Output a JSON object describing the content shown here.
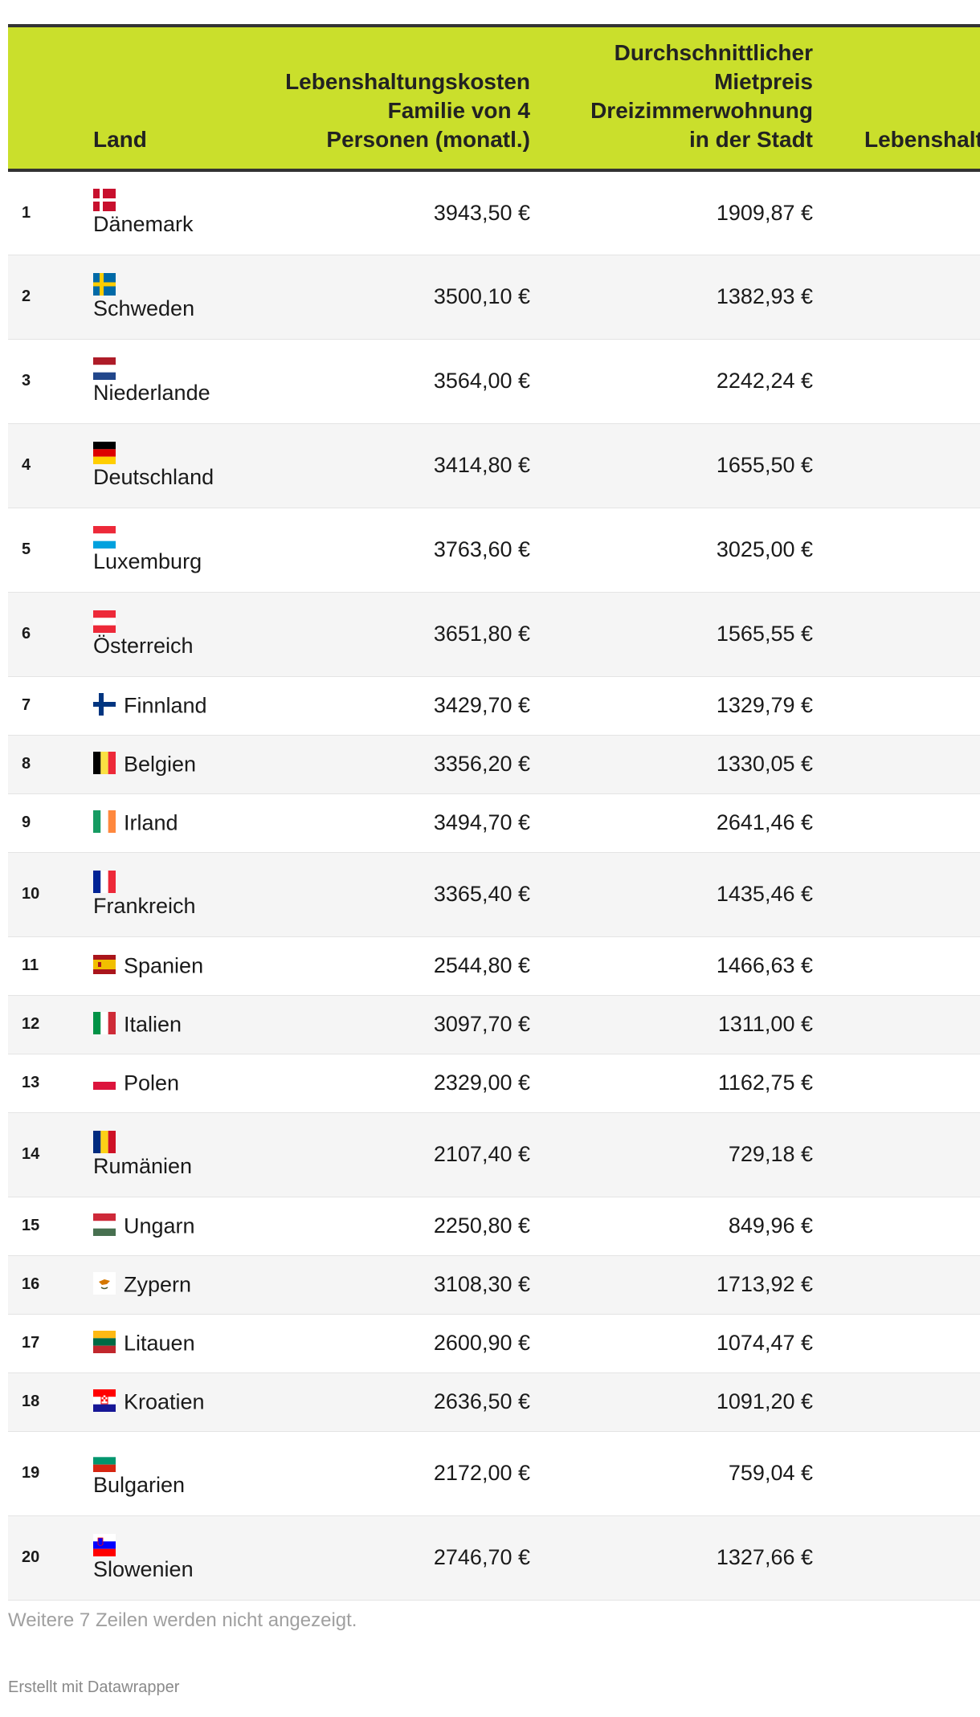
{
  "table": {
    "headers": {
      "land": "Land",
      "cost_lines": [
        "Lebenshaltungskosten",
        "Familie von 4",
        "Personen (monatl.)"
      ],
      "rent_lines": [
        "Durchschnittlicher",
        "Mietpreis",
        "Dreizimmerwohnung",
        "in der Stadt"
      ],
      "extra": "Lebenshalt"
    },
    "rows": [
      {
        "rank": "1",
        "flag": "denmark-flag",
        "country": "Dänemark",
        "cost": "3943,50 €",
        "rent": "1909,87 €",
        "layout": "tall"
      },
      {
        "rank": "2",
        "flag": "sweden-flag",
        "country": "Schweden",
        "cost": "3500,10 €",
        "rent": "1382,93 €",
        "layout": "tall"
      },
      {
        "rank": "3",
        "flag": "netherlands-flag",
        "country": "Niederlande",
        "cost": "3564,00 €",
        "rent": "2242,24 €",
        "layout": "tall"
      },
      {
        "rank": "4",
        "flag": "germany-flag",
        "country": "Deutschland",
        "cost": "3414,80 €",
        "rent": "1655,50 €",
        "layout": "tall"
      },
      {
        "rank": "5",
        "flag": "luxembourg-flag",
        "country": "Luxemburg",
        "cost": "3763,60 €",
        "rent": "3025,00 €",
        "layout": "tall"
      },
      {
        "rank": "6",
        "flag": "austria-flag",
        "country": "Österreich",
        "cost": "3651,80 €",
        "rent": "1565,55 €",
        "layout": "tall"
      },
      {
        "rank": "7",
        "flag": "finland-flag",
        "country": "Finnland",
        "cost": "3429,70 €",
        "rent": "1329,79 €",
        "layout": "short"
      },
      {
        "rank": "8",
        "flag": "belgium-flag",
        "country": "Belgien",
        "cost": "3356,20 €",
        "rent": "1330,05 €",
        "layout": "short"
      },
      {
        "rank": "9",
        "flag": "ireland-flag",
        "country": "Irland",
        "cost": "3494,70 €",
        "rent": "2641,46 €",
        "layout": "short"
      },
      {
        "rank": "10",
        "flag": "france-flag",
        "country": "Frankreich",
        "cost": "3365,40 €",
        "rent": "1435,46 €",
        "layout": "tall"
      },
      {
        "rank": "11",
        "flag": "spain-flag",
        "country": "Spanien",
        "cost": "2544,80 €",
        "rent": "1466,63 €",
        "layout": "short"
      },
      {
        "rank": "12",
        "flag": "italy-flag",
        "country": "Italien",
        "cost": "3097,70 €",
        "rent": "1311,00 €",
        "layout": "short"
      },
      {
        "rank": "13",
        "flag": "poland-flag",
        "country": "Polen",
        "cost": "2329,00 €",
        "rent": "1162,75 €",
        "layout": "short"
      },
      {
        "rank": "14",
        "flag": "romania-flag",
        "country": "Rumänien",
        "cost": "2107,40 €",
        "rent": "729,18 €",
        "layout": "tall"
      },
      {
        "rank": "15",
        "flag": "hungary-flag",
        "country": "Ungarn",
        "cost": "2250,80 €",
        "rent": "849,96 €",
        "layout": "short"
      },
      {
        "rank": "16",
        "flag": "cyprus-flag",
        "country": "Zypern",
        "cost": "3108,30 €",
        "rent": "1713,92 €",
        "layout": "short"
      },
      {
        "rank": "17",
        "flag": "lithuania-flag",
        "country": "Litauen",
        "cost": "2600,90 €",
        "rent": "1074,47 €",
        "layout": "short"
      },
      {
        "rank": "18",
        "flag": "croatia-flag",
        "country": "Kroatien",
        "cost": "2636,50 €",
        "rent": "1091,20 €",
        "layout": "short"
      },
      {
        "rank": "19",
        "flag": "bulgaria-flag",
        "country": "Bulgarien",
        "cost": "2172,00 €",
        "rent": "759,04 €",
        "layout": "tall"
      },
      {
        "rank": "20",
        "flag": "slovenia-flag",
        "country": "Slowenien",
        "cost": "2746,70 €",
        "rent": "1327,66 €",
        "layout": "tall"
      }
    ]
  },
  "footer": {
    "note": "Weitere 7 Zeilen werden nicht angezeigt.",
    "credit": "Erstellt mit Datawrapper"
  },
  "colors": {
    "header_background": "#cadf2c",
    "header_rule": "#333333",
    "zebra_row": "#f5f5f5",
    "footer_text": "#a0a0a0"
  }
}
